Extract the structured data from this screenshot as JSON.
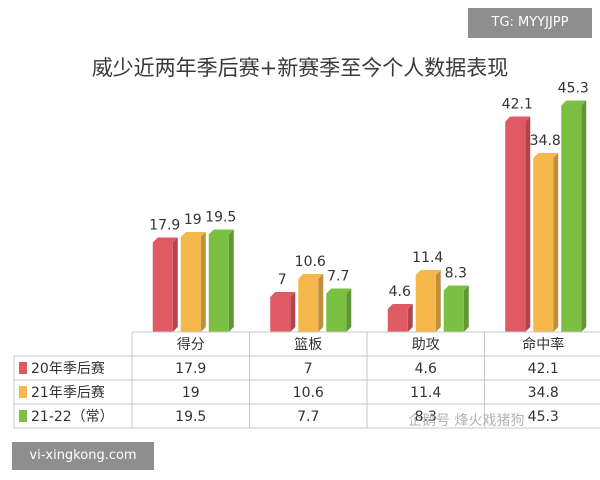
{
  "corner_tag": "TG: MYYJJPP",
  "watermark": "vi-xingkong.com",
  "overlay_watermark": "企鹅号 烽火戏猪狗",
  "chart_data": {
    "type": "bar",
    "title": "威少近两年季后赛+新赛季至今个人数据表现",
    "categories": [
      "得分",
      "篮板",
      "助攻",
      "命中率"
    ],
    "series": [
      {
        "name": "20年季后赛",
        "values": [
          17.9,
          7,
          4.6,
          42.1
        ],
        "color": "#e05a63"
      },
      {
        "name": "21年季后赛",
        "values": [
          19,
          10.6,
          11.4,
          34.8
        ],
        "color": "#f5b64a"
      },
      {
        "name": "21-22（常）",
        "values": [
          19.5,
          7.7,
          8.3,
          45.3
        ],
        "color": "#7cc043"
      }
    ],
    "table": true,
    "legend": "in-table",
    "grid": false
  }
}
